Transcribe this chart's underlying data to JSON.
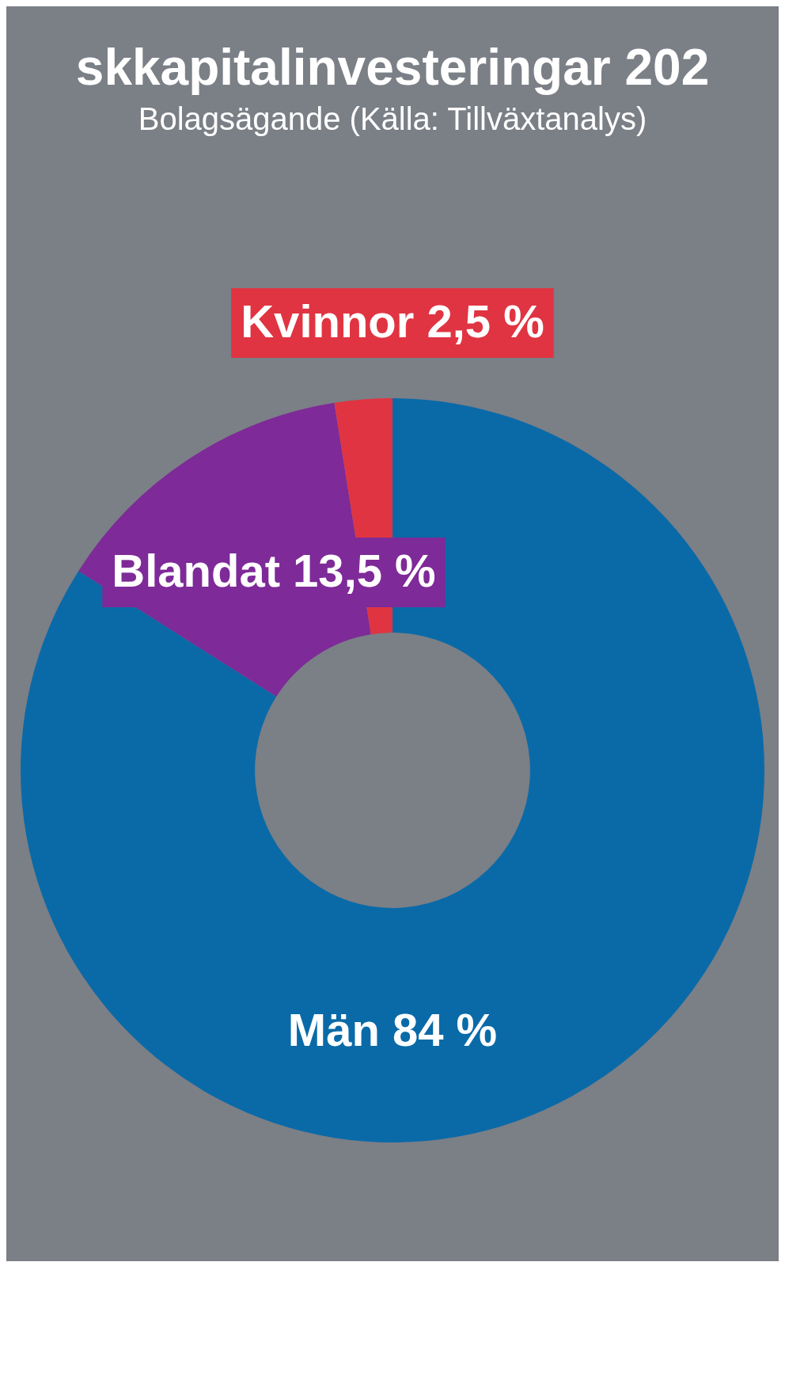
{
  "chart_data": {
    "type": "donut",
    "title": "skkapitalinvesteringar 202",
    "subtitle": "Bolagsägande (Källa: Tillväxtanalys)",
    "categories": [
      "Män",
      "Blandat",
      "Kvinnor"
    ],
    "values": [
      84,
      13.5,
      2.5
    ],
    "value_labels": [
      "84 %",
      "13,5 %",
      "2,5 %"
    ],
    "colors": [
      "#0a6aa8",
      "#7e2a98",
      "#e03442"
    ],
    "legend": false
  }
}
